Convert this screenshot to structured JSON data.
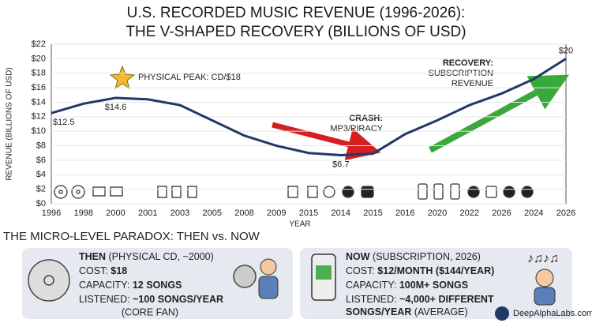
{
  "chart_data": {
    "type": "line",
    "title": [
      "U.S. RECORDED MUSIC REVENUE (1996-2026):",
      "THE V-SHAPED RECOVERY (BILLIONS OF USD)"
    ],
    "x_label": "YEAR",
    "y_label": "REVENUE (BILLIONS OF USD)",
    "categories": [
      "1996",
      "1998",
      "2000",
      "2001",
      "2003",
      "2005",
      "2008",
      "2009",
      "2015",
      "2014",
      "2015",
      "2016",
      "2020",
      "2022",
      "2026",
      "2024",
      "2026"
    ],
    "values": [
      12.5,
      13.8,
      14.6,
      14.4,
      13.6,
      11.5,
      9.4,
      8.0,
      7.0,
      6.7,
      6.9,
      9.6,
      11.5,
      13.6,
      15.2,
      17.2,
      20
    ],
    "value_labels": [
      "$12.5",
      null,
      "$14.6",
      null,
      null,
      null,
      null,
      null,
      null,
      "$6.7",
      null,
      null,
      null,
      null,
      null,
      null,
      "$20"
    ],
    "color": "#1f3a66",
    "ylim": [
      0,
      22
    ],
    "yticks": [
      {
        "value": 0,
        "label": "$0"
      },
      {
        "value": 2,
        "label": "$2"
      },
      {
        "value": 4,
        "label": "$4"
      },
      {
        "value": 6,
        "label": "$6"
      },
      {
        "value": 8,
        "label": "$8"
      },
      {
        "value": 10,
        "label": "$10"
      },
      {
        "value": 12,
        "label": "$12"
      },
      {
        "value": 14,
        "label": "$14"
      },
      {
        "value": 16,
        "label": "$16"
      },
      {
        "value": 18,
        "label": "$18"
      },
      {
        "value": 20,
        "label": "$20"
      },
      {
        "value": 22,
        "label": "$22"
      }
    ],
    "grid": true,
    "annotations": {
      "peak": "PHYSICAL PEAK: CD/$18",
      "crash": [
        "CRASH:",
        "MP3/PIRACY"
      ],
      "recovery": [
        "RECOVERY:",
        "SUBSCRIPTION",
        "REVENUE"
      ]
    }
  },
  "paradox": {
    "heading": "THE MICRO-LEVEL PARADOX: THEN vs. NOW",
    "then": {
      "title": "THEN",
      "subtitle": "(PHYSICAL CD, ~2000)",
      "cost_label": "COST:",
      "cost": "$18",
      "capacity_label": "CAPACITY:",
      "capacity": "12 SONGS",
      "listened_label": "LISTENED:",
      "listened": "~100 SONGS/YEAR",
      "note": "(CORE FAN)"
    },
    "now": {
      "title": "NOW",
      "subtitle": "(SUBSCRIPTION, 2026)",
      "cost_label": "COST:",
      "cost": "$12/MONTH ($144/YEAR)",
      "capacity_label": "CAPACITY:",
      "capacity": "100M+ SONGS",
      "listened_label": "LISTENED:",
      "listened": "~4,000+ DIFFERENT",
      "listened_2": "SONGS/YEAR",
      "note": "(AVERAGE)"
    }
  },
  "brand": "DeepAlphaLabs.com"
}
